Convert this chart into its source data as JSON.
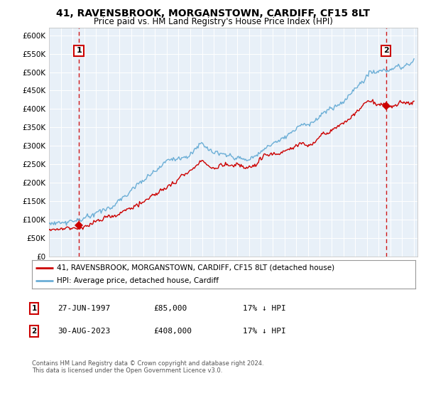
{
  "title": "41, RAVENSBROOK, MORGANSTOWN, CARDIFF, CF15 8LT",
  "subtitle": "Price paid vs. HM Land Registry's House Price Index (HPI)",
  "legend_line1": "41, RAVENSBROOK, MORGANSTOWN, CARDIFF, CF15 8LT (detached house)",
  "legend_line2": "HPI: Average price, detached house, Cardiff",
  "annotation1_date": "27-JUN-1997",
  "annotation1_price": 85000,
  "annotation1_hpi": "17% ↓ HPI",
  "annotation2_date": "30-AUG-2023",
  "annotation2_price": 408000,
  "annotation2_hpi": "17% ↓ HPI",
  "footer": "Contains HM Land Registry data © Crown copyright and database right 2024.\nThis data is licensed under the Open Government Licence v3.0.",
  "ylabel_ticks": [
    "£0",
    "£50K",
    "£100K",
    "£150K",
    "£200K",
    "£250K",
    "£300K",
    "£350K",
    "£400K",
    "£450K",
    "£500K",
    "£550K",
    "£600K"
  ],
  "ytick_values": [
    0,
    50000,
    100000,
    150000,
    200000,
    250000,
    300000,
    350000,
    400000,
    450000,
    500000,
    550000,
    600000
  ],
  "hpi_color": "#6baed6",
  "price_color": "#cc0000",
  "vline_color": "#cc0000",
  "plot_bg": "#e8f0f8"
}
